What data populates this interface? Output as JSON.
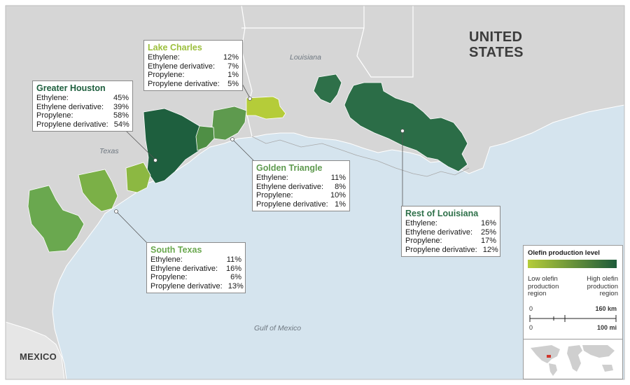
{
  "places": {
    "country_usa_line1": "UNITED",
    "country_usa_line2": "STATES",
    "country_mexico": "MEXICO",
    "state_louisiana": "Louisiana",
    "state_texas": "Texas",
    "gulf": "Gulf of Mexico"
  },
  "regions": {
    "lake_charles": {
      "name": "Lake Charles",
      "color": "#9cbf3d",
      "rows": [
        {
          "label": "Ethylene:",
          "value": "12%"
        },
        {
          "label": "Ethylene derivative:",
          "value": "7%"
        },
        {
          "label": "Propylene:",
          "value": "1%"
        },
        {
          "label": "Propylene derivative:",
          "value": "5%"
        }
      ]
    },
    "greater_houston": {
      "name": "Greater Houston",
      "color": "#1e5f3e",
      "rows": [
        {
          "label": "Ethylene:",
          "value": "45%"
        },
        {
          "label": "Ethylene derivative:",
          "value": "39%"
        },
        {
          "label": "Propylene:",
          "value": "58%"
        },
        {
          "label": "Propylene derivative:",
          "value": "54%"
        }
      ]
    },
    "golden_triangle": {
      "name": "Golden Triangle",
      "color": "#5e9a4e",
      "rows": [
        {
          "label": "Ethylene:",
          "value": "11%"
        },
        {
          "label": "Ethylene derivative:",
          "value": "8%"
        },
        {
          "label": "Propylene:",
          "value": "10%"
        },
        {
          "label": "Propylene derivative:",
          "value": "1%"
        }
      ]
    },
    "rest_of_louisiana": {
      "name": "Rest of Louisiana",
      "color": "#2e7049",
      "rows": [
        {
          "label": "Ethylene:",
          "value": "16%"
        },
        {
          "label": "Ethylene derivative:",
          "value": "25%"
        },
        {
          "label": "Propylene:",
          "value": "17%"
        },
        {
          "label": "Propylene derivative:",
          "value": "12%"
        }
      ]
    },
    "south_texas": {
      "name": "South Texas",
      "color": "#6aa84f",
      "rows": [
        {
          "label": "Ethylene:",
          "value": "11%"
        },
        {
          "label": "Ethylene derivative:",
          "value": "16%"
        },
        {
          "label": "Propylene:",
          "value": "6%"
        },
        {
          "label": "Propylene derivative:",
          "value": "13%"
        }
      ]
    }
  },
  "legend": {
    "title": "Olefin production level",
    "low_line1": "Low olefin",
    "low_line2": "production",
    "low_line3": "region",
    "high_line1": "High olefin",
    "high_line2": "production",
    "high_line3": "region",
    "scale_zero_top": "0",
    "scale_km": "160 km",
    "scale_zero_bottom": "0",
    "scale_mi": "100 mi",
    "low_color": "#b5cc39",
    "high_color": "#1d5a3a"
  },
  "colors": {
    "land": "#d6d6d6",
    "water": "#d5e4ee",
    "border": "#ffffff"
  }
}
